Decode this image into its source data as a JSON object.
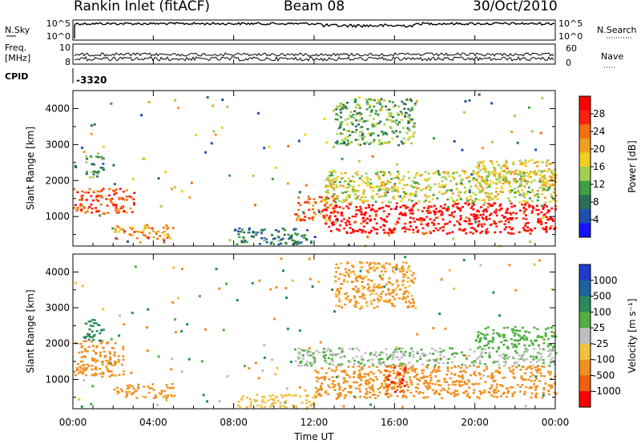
{
  "header": {
    "station": "Rankin Inlet (fitACF)",
    "beam": "Beam 08",
    "date": "30/Oct/2010"
  },
  "top_panels": {
    "nsky_label": "N.Sky",
    "nsearch_label": "N.Search",
    "noise_ticks": [
      "10^5",
      "10^0"
    ],
    "freq_label_1": "Freq.",
    "freq_label_2": "[MHz]",
    "freq_ticks": [
      "10",
      "8"
    ],
    "nave_label": "Nave",
    "nave_ticks": [
      "60",
      "0"
    ],
    "cpid_label": "CPID",
    "cpid_value": "-3320"
  },
  "x_axis": {
    "label": "Time UT",
    "ticks": [
      "00:00",
      "04:00",
      "08:00",
      "12:00",
      "16:00",
      "20:00",
      "00:00"
    ],
    "range_hours": [
      0,
      24
    ]
  },
  "colors": {
    "power_scale": [
      "#1414ff",
      "#1e4fb0",
      "#2a6e5a",
      "#3ea040",
      "#a0d050",
      "#f0d020",
      "#f0a020",
      "#f07010",
      "#ff2010",
      "#ff0000"
    ],
    "velocity_scale": [
      "#1e3cc8",
      "#1e64a0",
      "#2a8a5a",
      "#50b040",
      "#bebebe",
      "#f0c040",
      "#f09020",
      "#f06010",
      "#ff0000"
    ]
  },
  "chart_data": [
    {
      "type": "heatmap",
      "panel": "power",
      "ylabel": "Slant Range [km]",
      "ylim": [
        180,
        4500
      ],
      "yticks": [
        1000,
        2000,
        3000,
        4000
      ],
      "colorbar": {
        "label": "Power [dB]",
        "ticks": [
          4,
          8,
          12,
          16,
          20,
          24,
          28
        ],
        "range": [
          0,
          32
        ]
      },
      "regions": [
        {
          "t": [
            0.0,
            3.0
          ],
          "r": [
            1100,
            1800
          ],
          "value": 26
        },
        {
          "t": [
            0.5,
            1.5
          ],
          "r": [
            2100,
            2700
          ],
          "value": 10
        },
        {
          "t": [
            2.0,
            5.0
          ],
          "r": [
            400,
            800
          ],
          "value": 22
        },
        {
          "t": [
            8.0,
            12.0
          ],
          "r": [
            250,
            700
          ],
          "value": 8
        },
        {
          "t": [
            11.0,
            13.0
          ],
          "r": [
            900,
            1600
          ],
          "value": 24
        },
        {
          "t": [
            12.5,
            24.0
          ],
          "r": [
            550,
            1400
          ],
          "value": 30
        },
        {
          "t": [
            12.5,
            24.0
          ],
          "r": [
            1400,
            2300
          ],
          "value": 16
        },
        {
          "t": [
            13.0,
            17.0
          ],
          "r": [
            3000,
            4300
          ],
          "value": 12
        },
        {
          "t": [
            20.0,
            24.0
          ],
          "r": [
            1900,
            2600
          ],
          "value": 18
        }
      ]
    },
    {
      "type": "heatmap",
      "panel": "velocity",
      "ylabel": "Slant Range [km]",
      "ylim": [
        180,
        4500
      ],
      "yticks": [
        1000,
        2000,
        3000,
        4000
      ],
      "colorbar": {
        "label": "Velocity [m s⁻¹]",
        "ticks": [
          1000,
          500,
          100,
          25,
          -25,
          -100,
          -500,
          -1000
        ]
      },
      "regions": [
        {
          "t": [
            0.0,
            2.5
          ],
          "r": [
            1100,
            2100
          ],
          "value": -300
        },
        {
          "t": [
            0.5,
            1.5
          ],
          "r": [
            2100,
            2700
          ],
          "value": 200
        },
        {
          "t": [
            2.0,
            5.0
          ],
          "r": [
            500,
            900
          ],
          "value": -150
        },
        {
          "t": [
            8.0,
            12.0
          ],
          "r": [
            200,
            600
          ],
          "value": -60
        },
        {
          "t": [
            11.0,
            24.0
          ],
          "r": [
            1400,
            1900
          ],
          "value": 20
        },
        {
          "t": [
            12.0,
            24.0
          ],
          "r": [
            500,
            1400
          ],
          "value": -250
        },
        {
          "t": [
            13.0,
            17.0
          ],
          "r": [
            3000,
            4300
          ],
          "value": -120
        },
        {
          "t": [
            15.5,
            16.5
          ],
          "r": [
            600,
            1400
          ],
          "value": -900
        },
        {
          "t": [
            20.0,
            24.0
          ],
          "r": [
            1900,
            2500
          ],
          "value": 60
        }
      ]
    }
  ]
}
